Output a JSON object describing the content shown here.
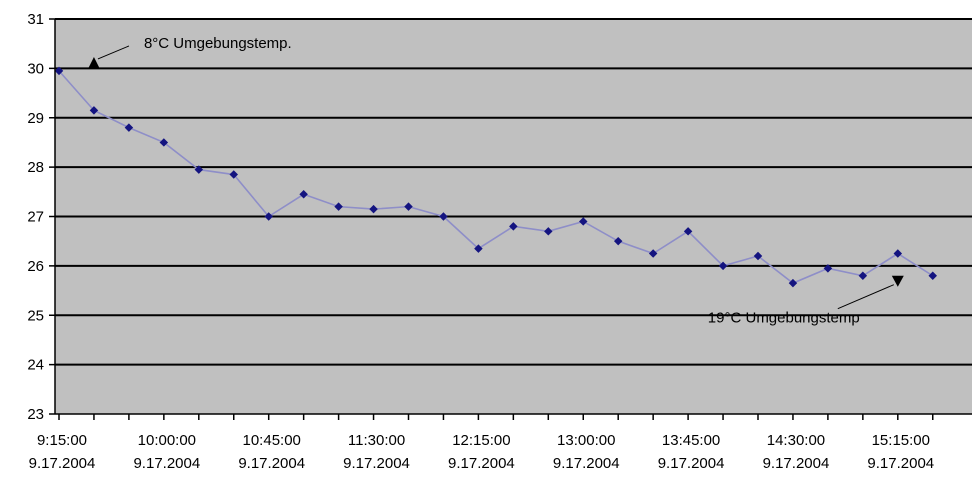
{
  "chart_data": {
    "type": "line",
    "ylim": [
      23,
      31
    ],
    "y_ticks": [
      "23",
      "24",
      "25",
      "26",
      "27",
      "28",
      "29",
      "30",
      "31"
    ],
    "x_tick_labels": [
      {
        "time": "9:15:00",
        "date": "9.17.2004"
      },
      {
        "time": "10:00:00",
        "date": "9.17.2004"
      },
      {
        "time": "10:45:00",
        "date": "9.17.2004"
      },
      {
        "time": "11:30:00",
        "date": "9.17.2004"
      },
      {
        "time": "12:15:00",
        "date": "9.17.2004"
      },
      {
        "time": "13:00:00",
        "date": "9.17.2004"
      },
      {
        "time": "13:45:00",
        "date": "9.17.2004"
      },
      {
        "time": "14:30:00",
        "date": "9.17.2004"
      },
      {
        "time": "15:15:00",
        "date": "9.17.2004"
      }
    ],
    "x_times": [
      "9:15",
      "9:30",
      "9:45",
      "10:00",
      "10:15",
      "10:30",
      "10:45",
      "11:00",
      "11:15",
      "11:30",
      "11:45",
      "12:00",
      "12:15",
      "12:30",
      "12:45",
      "13:00",
      "13:15",
      "13:30",
      "13:45",
      "14:00",
      "14:15",
      "14:30",
      "14:45",
      "15:00",
      "15:15",
      "15:30"
    ],
    "values": [
      29.95,
      29.15,
      28.8,
      28.5,
      27.95,
      27.85,
      27.0,
      27.45,
      27.2,
      27.15,
      27.2,
      27.0,
      26.35,
      26.8,
      26.7,
      26.9,
      26.5,
      26.25,
      26.7,
      26.0,
      26.2,
      25.65,
      25.95,
      25.8,
      26.25,
      25.8
    ],
    "grid": true,
    "colors": {
      "plot_background": "#c0c0c0",
      "line": "#8e8ec8",
      "marker": "#141480",
      "gridline": "#000000"
    },
    "annotations": [
      {
        "text": "8°C Umgebungstemp.",
        "x_index": 1,
        "direction": "up",
        "value": 30.15
      },
      {
        "text": "19°C Umgebungstemp",
        "x_index": 24,
        "direction": "down",
        "value": 25.7
      }
    ]
  }
}
